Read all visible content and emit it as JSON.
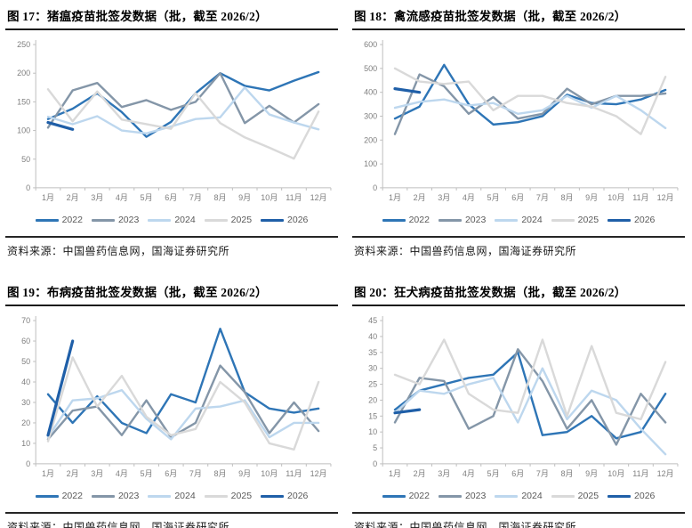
{
  "colors": {
    "axis_line": "#BFBFBF",
    "axis_text": "#7F7F7F",
    "legend_text": "#595959",
    "title_text": "#000000",
    "rule_dark": "#1A1A1A",
    "series_2022": "#2E75B6",
    "series_2023": "#8496A8",
    "series_2024": "#BDD7EE",
    "series_2025": "#D9D9D9",
    "series_2026": "#1F5FA8"
  },
  "panels": [
    {
      "title": "图 17：猪瘟疫苗批签发数据（批，截至 2026/2）",
      "source": "资料来源：中国兽药信息网，国海证券研究所"
    },
    {
      "title": "图 18：禽流感疫苗批签发数据（批，截至 2026/2）",
      "source": "资料来源：中国兽药信息网，国海证券研究所"
    },
    {
      "title": "图 19：布病疫苗批签发数据（批，截至 2026/2）",
      "source": "资料来源：中国兽药信息网，国海证券研究所"
    },
    {
      "title": "图 20：狂犬病疫苗批签发数据（批，截至 2026/2）",
      "source": "资料来源：中国兽药信息网，国海证券研究所"
    }
  ],
  "chart_data": [
    {
      "type": "line",
      "title": "图 17：猪瘟疫苗批签发数据（批，截至 2026/2）",
      "xlabel": "",
      "ylabel": "",
      "ylim": [
        0,
        250
      ],
      "ystep": 50,
      "grid": false,
      "legend_position": "bottom",
      "categories": [
        "1月",
        "2月",
        "3月",
        "4月",
        "5月",
        "6月",
        "7月",
        "8月",
        "9月",
        "10月",
        "11月",
        "12月"
      ],
      "series": [
        {
          "name": "2022",
          "color": "#2E75B6",
          "width": 2.4,
          "values": [
            120,
            138,
            165,
            132,
            89,
            115,
            165,
            200,
            178,
            170,
            187,
            202
          ]
        },
        {
          "name": "2023",
          "color": "#8496A8",
          "width": 2.4,
          "values": [
            105,
            170,
            183,
            141,
            153,
            136,
            150,
            200,
            113,
            143,
            114,
            146
          ]
        },
        {
          "name": "2024",
          "color": "#BDD7EE",
          "width": 2.4,
          "values": [
            124,
            111,
            125,
            100,
            95,
            107,
            120,
            123,
            175,
            128,
            114,
            102
          ]
        },
        {
          "name": "2025",
          "color": "#D9D9D9",
          "width": 2.4,
          "values": [
            172,
            116,
            168,
            119,
            111,
            103,
            165,
            113,
            88,
            70,
            51,
            133
          ]
        },
        {
          "name": "2026",
          "color": "#1F5FA8",
          "width": 3.2,
          "values": [
            114,
            102
          ]
        }
      ]
    },
    {
      "type": "line",
      "title": "图 18：禽流感疫苗批签发数据（批，截至 2026/2）",
      "xlabel": "",
      "ylabel": "",
      "ylim": [
        0,
        600
      ],
      "ystep": 100,
      "grid": false,
      "legend_position": "bottom",
      "categories": [
        "1月",
        "2月",
        "3月",
        "4月",
        "5月",
        "6月",
        "7月",
        "8月",
        "9月",
        "10月",
        "11月",
        "12月"
      ],
      "series": [
        {
          "name": "2022",
          "color": "#2E75B6",
          "width": 2.4,
          "values": [
            290,
            340,
            515,
            350,
            265,
            275,
            300,
            390,
            355,
            350,
            370,
            410
          ]
        },
        {
          "name": "2023",
          "color": "#8496A8",
          "width": 2.4,
          "values": [
            225,
            475,
            425,
            310,
            380,
            290,
            310,
            415,
            350,
            385,
            385,
            395
          ]
        },
        {
          "name": "2024",
          "color": "#BDD7EE",
          "width": 2.4,
          "values": [
            335,
            360,
            370,
            345,
            355,
            310,
            325,
            385,
            335,
            385,
            325,
            250
          ]
        },
        {
          "name": "2025",
          "color": "#D9D9D9",
          "width": 2.4,
          "values": [
            500,
            445,
            435,
            445,
            325,
            385,
            385,
            355,
            340,
            300,
            225,
            465
          ]
        },
        {
          "name": "2026",
          "color": "#1F5FA8",
          "width": 3.2,
          "values": [
            415,
            400
          ]
        }
      ]
    },
    {
      "type": "line",
      "title": "图 19：布病疫苗批签发数据（批，截至 2026/2）",
      "xlabel": "",
      "ylabel": "",
      "ylim": [
        0,
        70
      ],
      "ystep": 10,
      "grid": false,
      "legend_position": "bottom",
      "categories": [
        "1月",
        "2月",
        "3月",
        "4月",
        "5月",
        "6月",
        "7月",
        "8月",
        "9月",
        "10月",
        "11月",
        "12月"
      ],
      "series": [
        {
          "name": "2022",
          "color": "#2E75B6",
          "width": 2.4,
          "values": [
            34,
            20,
            33,
            20,
            15,
            34,
            30,
            66,
            35,
            27,
            25,
            27
          ]
        },
        {
          "name": "2023",
          "color": "#8496A8",
          "width": 2.4,
          "values": [
            12,
            26,
            28,
            14,
            31,
            13,
            20,
            48,
            35,
            15,
            30,
            16
          ]
        },
        {
          "name": "2024",
          "color": "#BDD7EE",
          "width": 2.4,
          "values": [
            13,
            31,
            32,
            36,
            22,
            12,
            27,
            28,
            31,
            13,
            20,
            20
          ]
        },
        {
          "name": "2025",
          "color": "#D9D9D9",
          "width": 2.4,
          "values": [
            11,
            52,
            28,
            43,
            23,
            14,
            17,
            40,
            30,
            10,
            7,
            40
          ]
        },
        {
          "name": "2026",
          "color": "#1F5FA8",
          "width": 3.2,
          "values": [
            14,
            60
          ]
        }
      ]
    },
    {
      "type": "line",
      "title": "图 20：狂犬病疫苗批签发数据（批，截至 2026/2）",
      "xlabel": "",
      "ylabel": "",
      "ylim": [
        0,
        45
      ],
      "ystep": 5,
      "grid": false,
      "legend_position": "bottom",
      "categories": [
        "1月",
        "2月",
        "3月",
        "4月",
        "5月",
        "6月",
        "7月",
        "8月",
        "9月",
        "10月",
        "11月",
        "12月"
      ],
      "series": [
        {
          "name": "2022",
          "color": "#2E75B6",
          "width": 2.4,
          "values": [
            17,
            23,
            25,
            27,
            28,
            35,
            9,
            10,
            15,
            8,
            10,
            22
          ]
        },
        {
          "name": "2023",
          "color": "#8496A8",
          "width": 2.4,
          "values": [
            13,
            27,
            26,
            11,
            15,
            36,
            26,
            11,
            20,
            6,
            22,
            13
          ]
        },
        {
          "name": "2024",
          "color": "#BDD7EE",
          "width": 2.4,
          "values": [
            16,
            23,
            22,
            25,
            27,
            13,
            30,
            14,
            23,
            20,
            11,
            3
          ]
        },
        {
          "name": "2025",
          "color": "#D9D9D9",
          "width": 2.4,
          "values": [
            28,
            25,
            39,
            22,
            17,
            16,
            39,
            15,
            37,
            16,
            14,
            32
          ]
        },
        {
          "name": "2026",
          "color": "#1F5FA8",
          "width": 3.2,
          "values": [
            16,
            17
          ]
        }
      ]
    }
  ]
}
